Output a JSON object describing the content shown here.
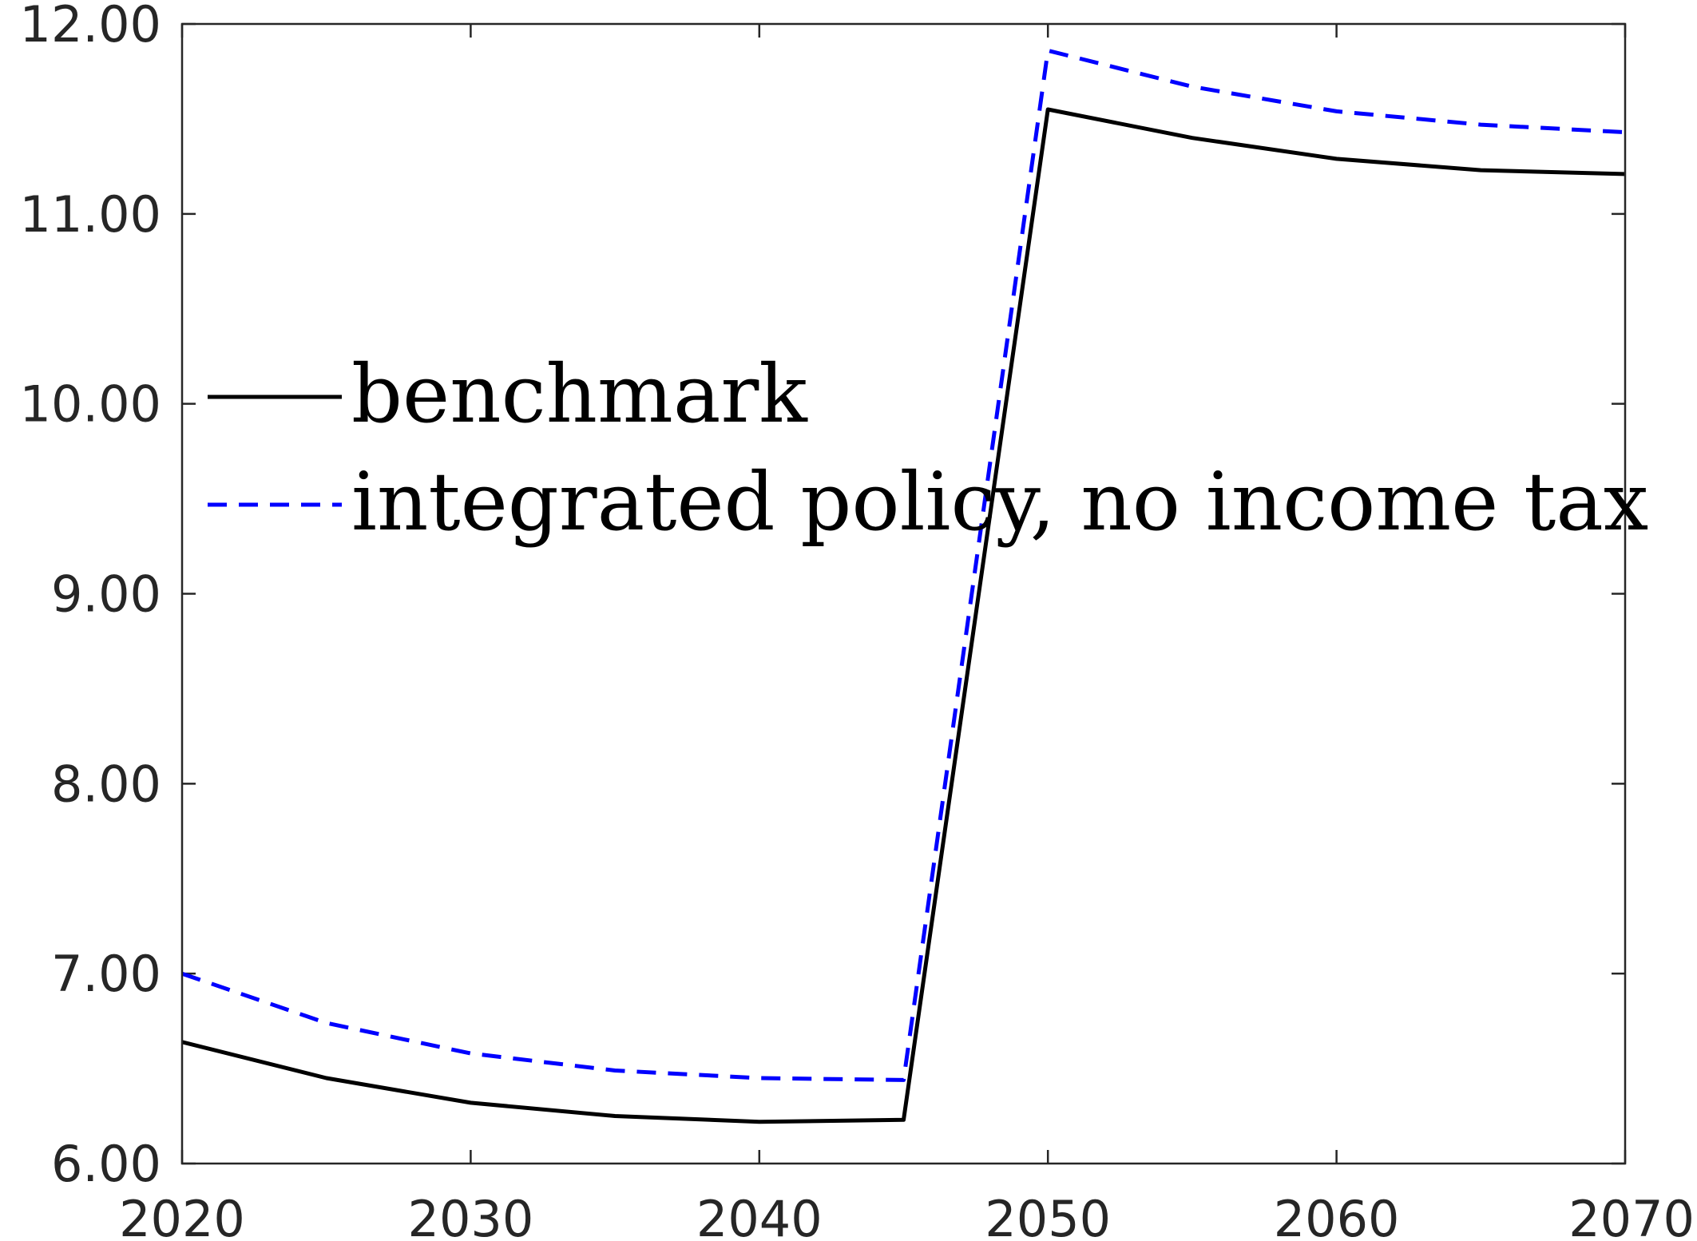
{
  "chart_data": {
    "type": "line",
    "title": "",
    "xlabel": "",
    "ylabel": "",
    "xlim": [
      2020,
      2070
    ],
    "ylim": [
      6,
      12
    ],
    "x_ticks": [
      2020,
      2030,
      2040,
      2050,
      2060,
      2070
    ],
    "x_tick_labels": [
      "2020",
      "2030",
      "2040",
      "2050",
      "2060",
      "2070"
    ],
    "y_ticks": [
      6,
      7,
      8,
      9,
      10,
      11,
      12
    ],
    "y_tick_labels": [
      "6.00",
      "7.00",
      "8.00",
      "9.00",
      "10.00",
      "11.00",
      "12.00"
    ],
    "grid": false,
    "legend_position": "center-left",
    "x": [
      2020,
      2025,
      2030,
      2035,
      2040,
      2045,
      2050,
      2055,
      2060,
      2065,
      2070
    ],
    "series": [
      {
        "name": "benchmark",
        "color": "#000000",
        "style": "solid",
        "values": [
          6.64,
          6.45,
          6.32,
          6.25,
          6.22,
          6.23,
          11.55,
          11.4,
          11.29,
          11.23,
          11.21
        ]
      },
      {
        "name": "integrated policy, no income tax",
        "color": "#0000ff",
        "style": "dashed",
        "values": [
          7.0,
          6.74,
          6.58,
          6.49,
          6.45,
          6.44,
          11.86,
          11.67,
          11.54,
          11.47,
          11.43
        ]
      }
    ]
  }
}
